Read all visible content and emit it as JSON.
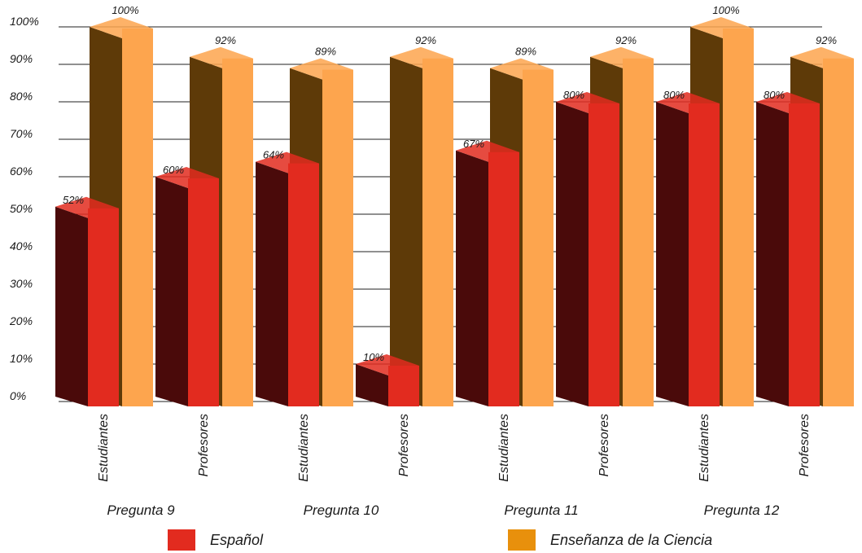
{
  "chart_data": {
    "type": "bar",
    "style": "3d-grouped",
    "y_ticks": [
      "0%",
      "10%",
      "20%",
      "30%",
      "40%",
      "50%",
      "60%",
      "70%",
      "80%",
      "90%",
      "100%"
    ],
    "ylim": [
      0,
      100
    ],
    "grid": true,
    "groups": [
      {
        "label": "Pregunta 9",
        "categories": [
          "Estudiantes",
          "Profesores"
        ]
      },
      {
        "label": "Pregunta 10",
        "categories": [
          "Estudiantes",
          "Profesores"
        ]
      },
      {
        "label": "Pregunta 11",
        "categories": [
          "Estudiantes",
          "Profesores"
        ]
      },
      {
        "label": "Pregunta 12",
        "categories": [
          "Estudiantes",
          "Profesores"
        ]
      }
    ],
    "categories": [
      "Estudiantes",
      "Profesores",
      "Estudiantes",
      "Profesores",
      "Estudiantes",
      "Profesores",
      "Estudiantes",
      "Profesores"
    ],
    "series": [
      {
        "name": "Español",
        "color": "#e22b1f",
        "dark": "#4a0a0a",
        "values": [
          52,
          60,
          64,
          10,
          67,
          80,
          80,
          80
        ],
        "labels": [
          "52%",
          "60%",
          "64%",
          "10%",
          "67%",
          "80%",
          "80%",
          "80%"
        ]
      },
      {
        "name": "Enseñanza de la Ciencia",
        "color": "#fda54e",
        "dark": "#5e3a08",
        "values": [
          100,
          92,
          89,
          92,
          89,
          92,
          100,
          92
        ],
        "labels": [
          "100%",
          "92%",
          "89%",
          "92%",
          "89%",
          "92%",
          "100%",
          "92%"
        ]
      }
    ],
    "legend_position": "bottom",
    "legend_swatches": [
      "#e22b1f",
      "#e8900c"
    ]
  }
}
